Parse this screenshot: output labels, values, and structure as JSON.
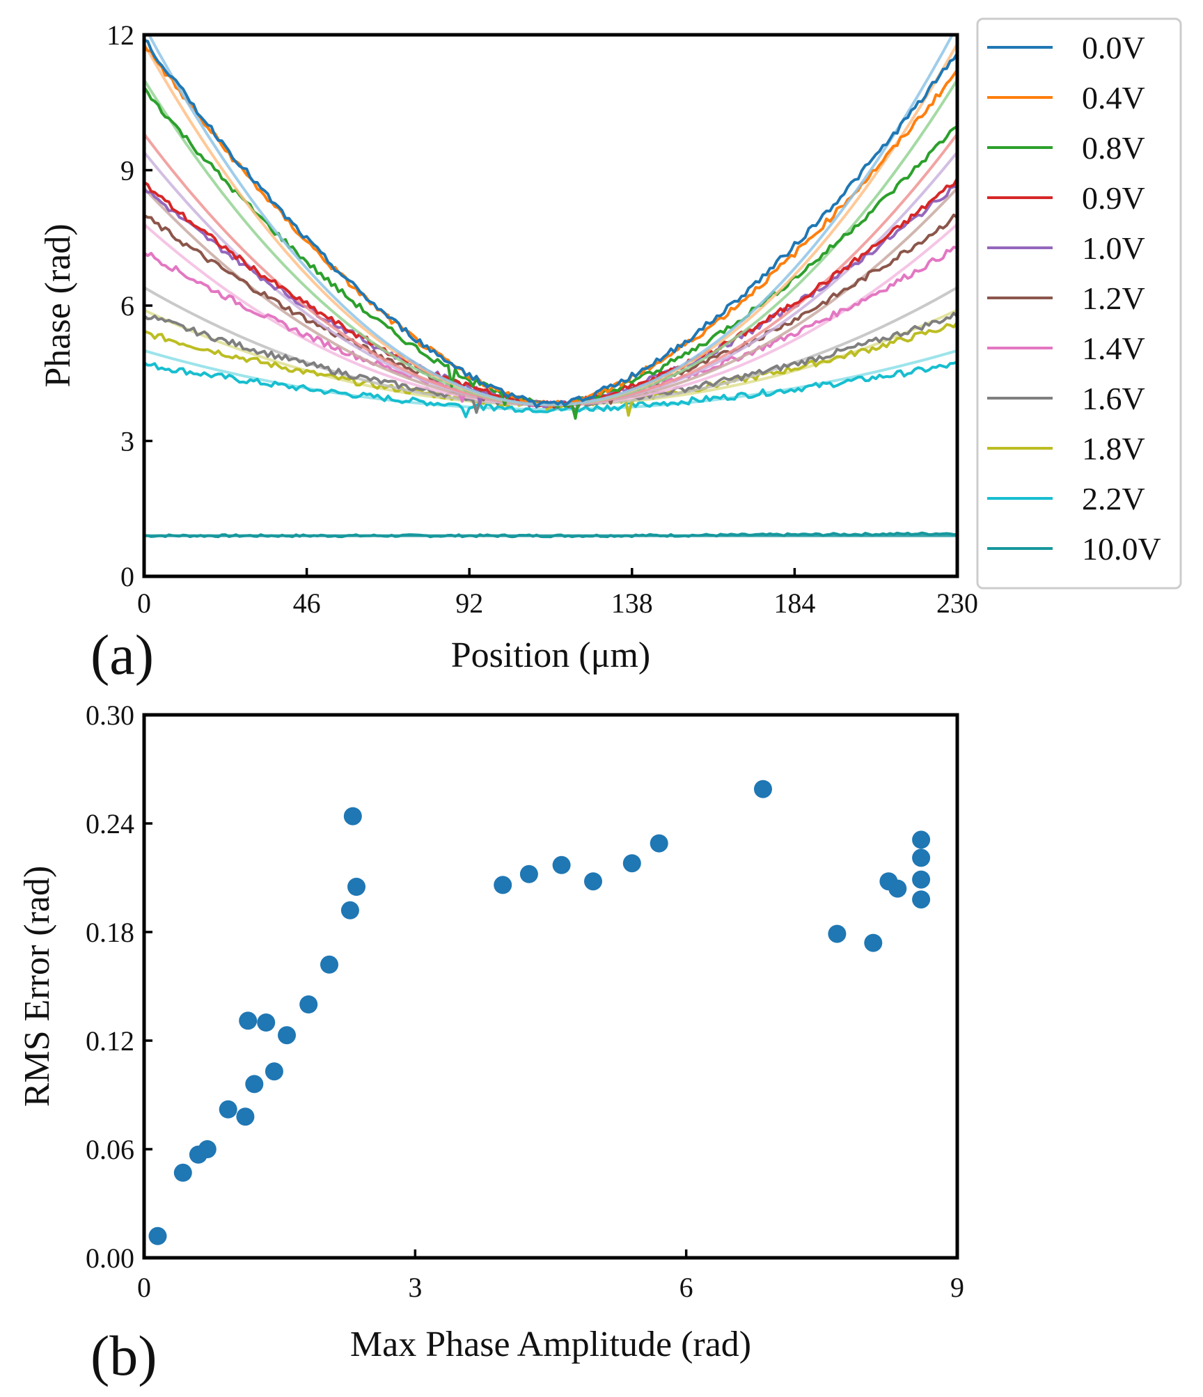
{
  "figure": {
    "panels": [
      "(a)",
      "(b)"
    ]
  },
  "colors": {
    "scatter": "#1f77b4",
    "axis": "#000000",
    "legend_border": "#cccccc"
  },
  "chart_data": [
    {
      "type": "line",
      "panel_label": "(a)",
      "title": "",
      "xlabel": "Position (μm)",
      "ylabel": "Phase (rad)",
      "xlim": [
        0,
        230
      ],
      "ylim": [
        0,
        12
      ],
      "xticks": [
        0,
        46,
        92,
        138,
        184,
        230
      ],
      "yticks": [
        0,
        3,
        6,
        9,
        12
      ],
      "grid": false,
      "legend_position": "outside-right",
      "x_center": 115,
      "series": [
        {
          "name": "0.0V",
          "color": "#1f77b4",
          "fit_color": "#8fc4e8",
          "min_phase": 3.8,
          "edge_phase_left": 11.9,
          "edge_phase_right": 11.6,
          "fit_edge_phase": 12.2
        },
        {
          "name": "0.4V",
          "color": "#ff7f0e",
          "fit_color": "#ffbf86",
          "min_phase": 3.8,
          "edge_phase_left": 11.8,
          "edge_phase_right": 11.2,
          "fit_edge_phase": 11.8
        },
        {
          "name": "0.8V",
          "color": "#2ca02c",
          "fit_color": "#94d494",
          "min_phase": 3.8,
          "edge_phase_left": 10.8,
          "edge_phase_right": 10.0,
          "fit_edge_phase": 11.0
        },
        {
          "name": "0.9V",
          "color": "#d62728",
          "fit_color": "#f09393",
          "min_phase": 3.8,
          "edge_phase_left": 8.7,
          "edge_phase_right": 8.8,
          "fit_edge_phase": 9.8
        },
        {
          "name": "1.0V",
          "color": "#9467bd",
          "fit_color": "#cab3de",
          "min_phase": 3.8,
          "edge_phase_left": 8.6,
          "edge_phase_right": 8.7,
          "fit_edge_phase": 9.4
        },
        {
          "name": "1.2V",
          "color": "#8c564b",
          "fit_color": "#c9a9a2",
          "min_phase": 3.8,
          "edge_phase_left": 8.0,
          "edge_phase_right": 8.0,
          "fit_edge_phase": 8.6
        },
        {
          "name": "1.4V",
          "color": "#e377c2",
          "fit_color": "#f3bbe1",
          "min_phase": 3.8,
          "edge_phase_left": 7.2,
          "edge_phase_right": 7.3,
          "fit_edge_phase": 7.8
        },
        {
          "name": "1.6V",
          "color": "#7f7f7f",
          "fit_color": "#bfbfbf",
          "min_phase": 3.8,
          "edge_phase_left": 5.8,
          "edge_phase_right": 5.8,
          "fit_edge_phase": 6.4
        },
        {
          "name": "1.8V",
          "color": "#bcbd22",
          "fit_color": "#dedf90",
          "min_phase": 3.8,
          "edge_phase_left": 5.4,
          "edge_phase_right": 5.6,
          "fit_edge_phase": 5.9
        },
        {
          "name": "2.2V",
          "color": "#17becf",
          "fit_color": "#8bdfe7",
          "min_phase": 3.7,
          "edge_phase_left": 4.7,
          "edge_phase_right": 4.7,
          "fit_edge_phase": 5.0
        },
        {
          "name": "10.0V",
          "color": "#17989d",
          "fit_color": "#17989d",
          "min_phase": 0.9,
          "edge_phase_left": 0.9,
          "edge_phase_right": 0.95,
          "fit_edge_phase": 0.9
        }
      ]
    },
    {
      "type": "scatter",
      "panel_label": "(b)",
      "title": "",
      "xlabel": "Max Phase Amplitude (rad)",
      "ylabel": "RMS Error (rad)",
      "xlim": [
        0,
        9
      ],
      "ylim": [
        0,
        0.3
      ],
      "xticks": [
        0,
        3,
        6,
        9
      ],
      "yticks": [
        0.0,
        0.06,
        0.12,
        0.18,
        0.24,
        0.3
      ],
      "xtick_labels": [
        "0",
        "3",
        "6",
        "9"
      ],
      "ytick_labels": [
        "0.00",
        "0.06",
        "0.12",
        "0.18",
        "0.24",
        "0.30"
      ],
      "grid": false,
      "series": [
        {
          "name": "RMS error",
          "points": [
            {
              "x": 0.15,
              "y": 0.012
            },
            {
              "x": 0.43,
              "y": 0.047
            },
            {
              "x": 0.6,
              "y": 0.057
            },
            {
              "x": 0.7,
              "y": 0.06
            },
            {
              "x": 0.93,
              "y": 0.082
            },
            {
              "x": 1.12,
              "y": 0.078
            },
            {
              "x": 1.15,
              "y": 0.131
            },
            {
              "x": 1.22,
              "y": 0.096
            },
            {
              "x": 1.35,
              "y": 0.13
            },
            {
              "x": 1.44,
              "y": 0.103
            },
            {
              "x": 1.58,
              "y": 0.123
            },
            {
              "x": 1.82,
              "y": 0.14
            },
            {
              "x": 2.05,
              "y": 0.162
            },
            {
              "x": 2.28,
              "y": 0.192
            },
            {
              "x": 2.31,
              "y": 0.244
            },
            {
              "x": 2.35,
              "y": 0.205
            },
            {
              "x": 3.97,
              "y": 0.206
            },
            {
              "x": 4.26,
              "y": 0.212
            },
            {
              "x": 4.62,
              "y": 0.217
            },
            {
              "x": 4.97,
              "y": 0.208
            },
            {
              "x": 5.4,
              "y": 0.218
            },
            {
              "x": 5.7,
              "y": 0.229
            },
            {
              "x": 6.85,
              "y": 0.259
            },
            {
              "x": 7.67,
              "y": 0.179
            },
            {
              "x": 8.07,
              "y": 0.174
            },
            {
              "x": 8.24,
              "y": 0.208
            },
            {
              "x": 8.34,
              "y": 0.204
            },
            {
              "x": 8.6,
              "y": 0.231
            },
            {
              "x": 8.6,
              "y": 0.221
            },
            {
              "x": 8.6,
              "y": 0.209
            },
            {
              "x": 8.6,
              "y": 0.198
            }
          ]
        }
      ]
    }
  ]
}
